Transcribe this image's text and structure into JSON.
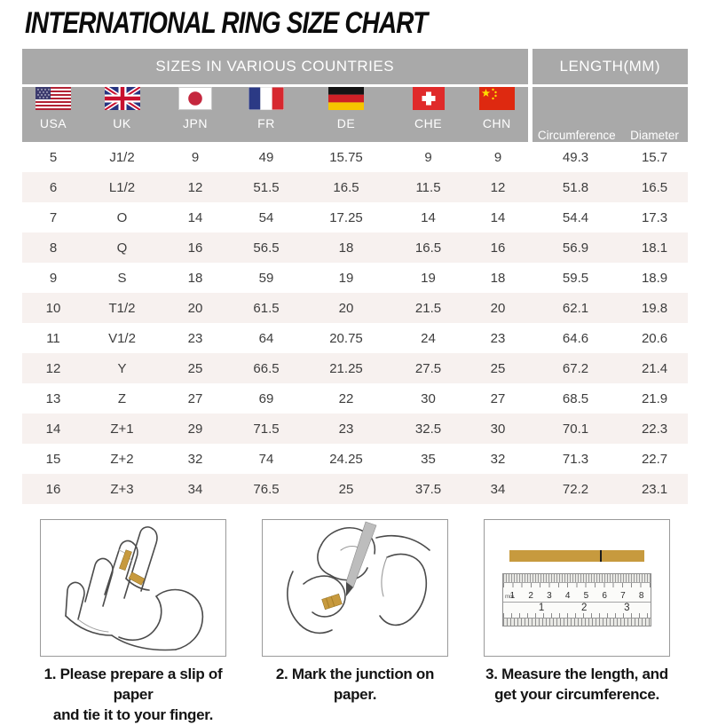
{
  "title": "INTERNATIONAL RING SIZE CHART",
  "chart_data": {
    "type": "table",
    "title": "INTERNATIONAL RING SIZE CHART",
    "group_headers": [
      {
        "label": "SIZES IN VARIOUS COUNTRIES",
        "span": 7
      },
      {
        "label": "LENGTH(MM)",
        "span": 2
      }
    ],
    "columns": [
      "USA",
      "UK",
      "JPN",
      "FR",
      "DE",
      "CHE",
      "CHN",
      "Circumference",
      "Diameter"
    ],
    "rows": [
      [
        "5",
        "J1/2",
        "9",
        "49",
        "15.75",
        "9",
        "9",
        "49.3",
        "15.7"
      ],
      [
        "6",
        "L1/2",
        "12",
        "51.5",
        "16.5",
        "11.5",
        "12",
        "51.8",
        "16.5"
      ],
      [
        "7",
        "O",
        "14",
        "54",
        "17.25",
        "14",
        "14",
        "54.4",
        "17.3"
      ],
      [
        "8",
        "Q",
        "16",
        "56.5",
        "18",
        "16.5",
        "16",
        "56.9",
        "18.1"
      ],
      [
        "9",
        "S",
        "18",
        "59",
        "19",
        "19",
        "18",
        "59.5",
        "18.9"
      ],
      [
        "10",
        "T1/2",
        "20",
        "61.5",
        "20",
        "21.5",
        "20",
        "62.1",
        "19.8"
      ],
      [
        "11",
        "V1/2",
        "23",
        "64",
        "20.75",
        "24",
        "23",
        "64.6",
        "20.6"
      ],
      [
        "12",
        "Y",
        "25",
        "66.5",
        "21.25",
        "27.5",
        "25",
        "67.2",
        "21.4"
      ],
      [
        "13",
        "Z",
        "27",
        "69",
        "22",
        "30",
        "27",
        "68.5",
        "21.9"
      ],
      [
        "14",
        "Z+1",
        "29",
        "71.5",
        "23",
        "32.5",
        "30",
        "70.1",
        "22.3"
      ],
      [
        "15",
        "Z+2",
        "32",
        "74",
        "24.25",
        "35",
        "32",
        "71.3",
        "22.7"
      ],
      [
        "16",
        "Z+3",
        "34",
        "76.5",
        "25",
        "37.5",
        "34",
        "72.2",
        "23.1"
      ]
    ]
  },
  "header": {
    "flag_icons": [
      "usa-flag-icon",
      "uk-flag-icon",
      "japan-flag-icon",
      "france-flag-icon",
      "germany-flag-icon",
      "switzerland-flag-icon",
      "china-flag-icon"
    ]
  },
  "steps": [
    {
      "line1": "1. Please prepare a slip of paper",
      "line2": "and tie it to your finger."
    },
    {
      "line1": "2. Mark the junction on paper.",
      "line2": ""
    },
    {
      "line1": "3. Measure the length, and",
      "line2": "get your circumference."
    }
  ],
  "ruler": {
    "unit_label": "mm",
    "cm_marks": [
      "1",
      "2",
      "3",
      "4",
      "5",
      "6",
      "7",
      "8"
    ],
    "inch_marks": [
      "1",
      "2",
      "3"
    ]
  },
  "colors": {
    "header_gray": "#a9a9a9",
    "row_alt": "#f7f1ef",
    "table_text": "#3d3d3d",
    "paper_gold": "#c79a3e"
  }
}
